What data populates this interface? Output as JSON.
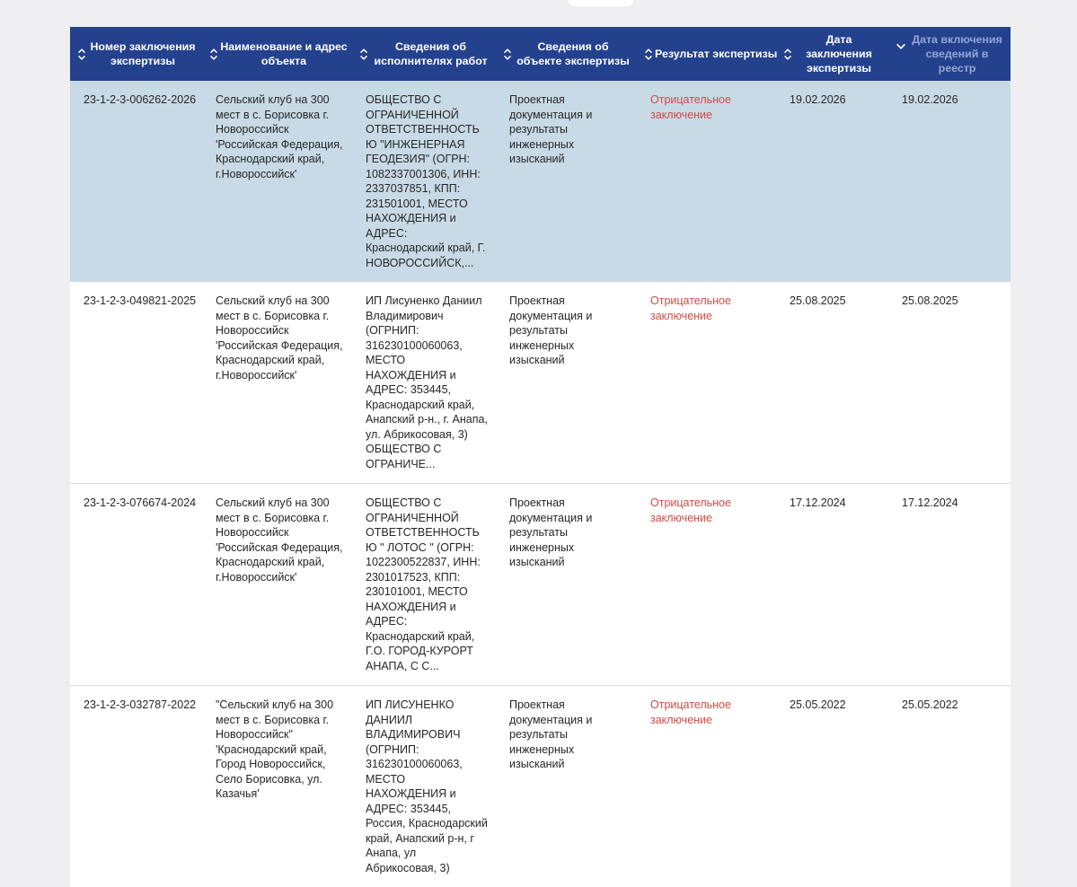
{
  "colors": {
    "header_bg": "#24418e",
    "header_text": "#ffffff",
    "sorted_header_text": "#94a7d2",
    "selected_row_bg": "#c8dae6",
    "row_bg": "#ffffff",
    "row_border": "#dcdce1",
    "cell_text": "#262626",
    "negative_result_text": "#d04b45"
  },
  "table": {
    "columns": [
      {
        "label": "Номер заключения экспертизы",
        "sort": "both"
      },
      {
        "label": "Наименование и адрес объекта",
        "sort": "both"
      },
      {
        "label": "Сведения об исполнителях работ",
        "sort": "both"
      },
      {
        "label": "Сведения об объекте экспертизы",
        "sort": "both"
      },
      {
        "label": "Результат экспертизы",
        "sort": "both"
      },
      {
        "label": "Дата заключения экспертизы",
        "sort": "both"
      },
      {
        "label": "Дата включения сведений в реестр",
        "sort": "desc"
      }
    ],
    "rows": [
      {
        "selected": true,
        "number": "23-1-2-3-006262-2026",
        "object_name": "Сельский клуб на 300 мест в с. Борисовка г. Новороссийск 'Российская Федерация, Краснодарский край, г.Новороссийск'",
        "performers": "ОБЩЕСТВО С ОГРАНИЧЕННОЙ ОТВЕТСТВЕННОСТЬЮ \"ИНЖЕНЕРНАЯ ГЕОДЕЗИЯ\" (ОГРН: 1082337001306, ИНН: 2337037851, КПП: 231501001, МЕСТО НАХОЖДЕНИЯ и АДРЕС: Краснодарский край, Г. НОВОРОССИЙСК,...",
        "subject": "Проектная документация и результаты инженерных изысканий",
        "result": "Отрицательное заключение",
        "conclusion_date": "19.02.2026",
        "registry_date": "19.02.2026"
      },
      {
        "selected": false,
        "number": "23-1-2-3-049821-2025",
        "object_name": "Сельский клуб на 300 мест в с. Борисовка г. Новороссийск 'Российская Федерация, Краснодарский край, г.Новороссийск'",
        "performers": "ИП Лисуненко Даниил Владимирович (ОГРНИП: 316230100060063, МЕСТО НАХОЖДЕНИЯ и АДРЕС: 353445, Краснодарский край, Анапский р-н., г. Анапа, ул. Абрикосовая, 3) ОБЩЕСТВО С ОГРАНИЧЕ...",
        "subject": "Проектная документация и результаты инженерных изысканий",
        "result": "Отрицательное заключение",
        "conclusion_date": "25.08.2025",
        "registry_date": "25.08.2025"
      },
      {
        "selected": false,
        "number": "23-1-2-3-076674-2024",
        "object_name": "Сельский клуб на 300 мест в с. Борисовка г. Новороссийск 'Российская Федерация, Краснодарский край, г.Новороссийск'",
        "performers": "ОБЩЕСТВО С ОГРАНИЧЕННОЙ ОТВЕТСТВЕННОСТЬЮ \" ЛОТОС \" (ОГРН: 1022300522837, ИНН: 2301017523, КПП: 230101001, МЕСТО НАХОЖДЕНИЯ и АДРЕС: Краснодарский край, Г.О. ГОРОД-КУРОРТ АНАПА, С С...",
        "subject": "Проектная документация и результаты инженерных изысканий",
        "result": "Отрицательное заключение",
        "conclusion_date": "17.12.2024",
        "registry_date": "17.12.2024"
      },
      {
        "selected": false,
        "number": "23-1-2-3-032787-2022",
        "object_name": "\"Сельский клуб на 300 мест в с. Борисовка г. Новороссийск\" 'Краснодарский край, Город Новороссийск, Село Борисовка, ул. Казачья'",
        "performers": "ИП ЛИСУНЕНКО ДАНИИЛ ВЛАДИМИРОВИЧ (ОГРНИП: 316230100060063, МЕСТО НАХОЖДЕНИЯ и АДРЕС: 353445, Россия, Краснодарский край, Анапский р-н, г Анапа, ул Абрикосовая, 3)",
        "subject": "Проектная документация и результаты инженерных изысканий",
        "result": "Отрицательное заключение",
        "conclusion_date": "25.05.2022",
        "registry_date": "25.05.2022"
      }
    ]
  }
}
